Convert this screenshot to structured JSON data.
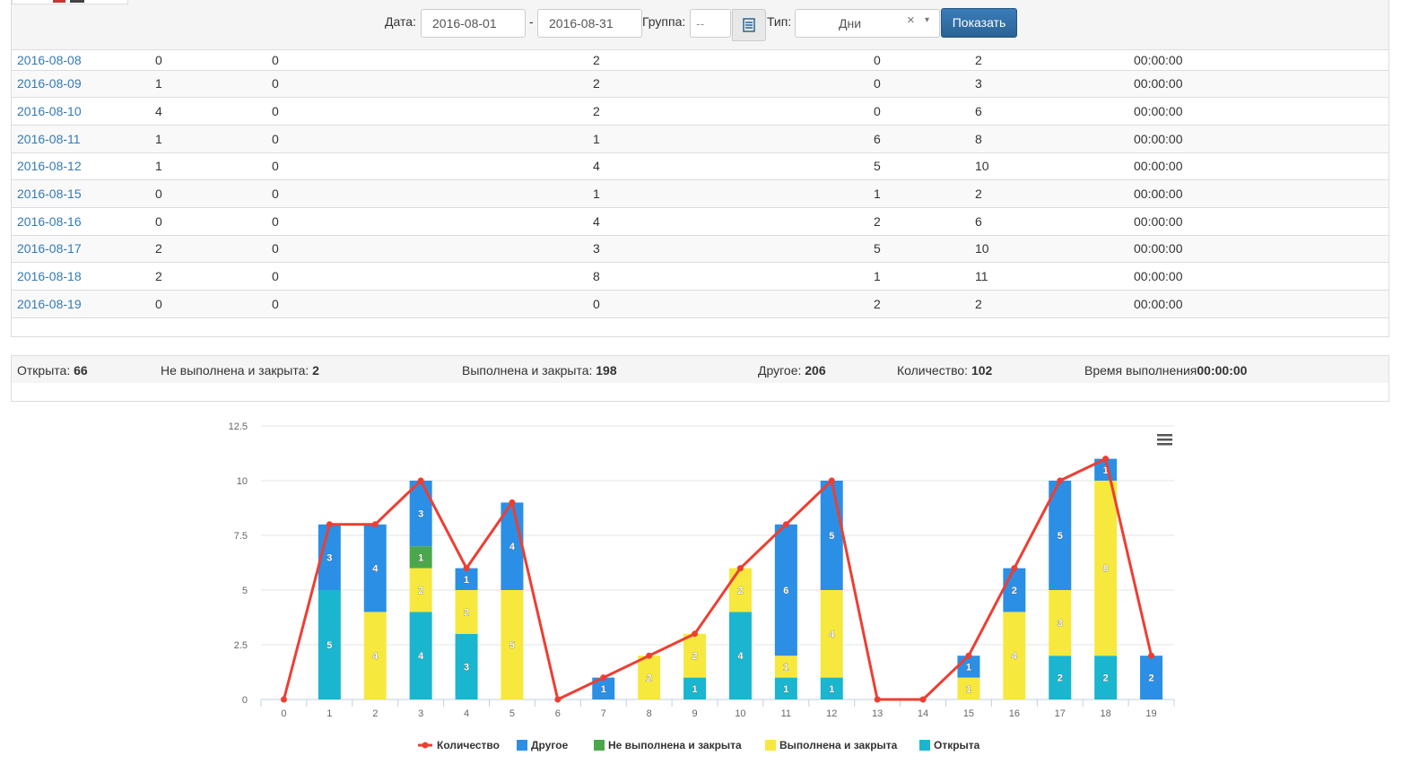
{
  "toolbar": {
    "date_label": "Дата:",
    "date_from": "2016-08-01",
    "date_separator": "-",
    "date_to": "2016-08-31",
    "group_label": "Группа:",
    "group_value": "--",
    "calendar_icon": "list-icon",
    "type_label": "Тип:",
    "type_value": "Дни",
    "type_clear": "×",
    "type_arrow": "▾",
    "show_button": "Показать"
  },
  "table": {
    "rows": [
      {
        "date": "2016-08-08",
        "c1": "0",
        "c2": "0",
        "c3": "2",
        "c4": "0",
        "c5": "2",
        "time": "00:00:00"
      },
      {
        "date": "2016-08-09",
        "c1": "1",
        "c2": "0",
        "c3": "2",
        "c4": "0",
        "c5": "3",
        "time": "00:00:00"
      },
      {
        "date": "2016-08-10",
        "c1": "4",
        "c2": "0",
        "c3": "2",
        "c4": "0",
        "c5": "6",
        "time": "00:00:00"
      },
      {
        "date": "2016-08-11",
        "c1": "1",
        "c2": "0",
        "c3": "1",
        "c4": "6",
        "c5": "8",
        "time": "00:00:00"
      },
      {
        "date": "2016-08-12",
        "c1": "1",
        "c2": "0",
        "c3": "4",
        "c4": "5",
        "c5": "10",
        "time": "00:00:00"
      },
      {
        "date": "2016-08-15",
        "c1": "0",
        "c2": "0",
        "c3": "1",
        "c4": "1",
        "c5": "2",
        "time": "00:00:00"
      },
      {
        "date": "2016-08-16",
        "c1": "0",
        "c2": "0",
        "c3": "4",
        "c4": "2",
        "c5": "6",
        "time": "00:00:00"
      },
      {
        "date": "2016-08-17",
        "c1": "2",
        "c2": "0",
        "c3": "3",
        "c4": "5",
        "c5": "10",
        "time": "00:00:00"
      },
      {
        "date": "2016-08-18",
        "c1": "2",
        "c2": "0",
        "c3": "8",
        "c4": "1",
        "c5": "11",
        "time": "00:00:00"
      },
      {
        "date": "2016-08-19",
        "c1": "0",
        "c2": "0",
        "c3": "0",
        "c4": "2",
        "c5": "2",
        "time": "00:00:00"
      }
    ]
  },
  "summary": {
    "open_label": "Открыта:",
    "open_value": "66",
    "notdone_label": "Не выполнена и закрыта:",
    "notdone_value": "2",
    "done_label": "Выполнена и закрыта:",
    "done_value": "198",
    "other_label": "Другое:",
    "other_value": "206",
    "count_label": "Количество:",
    "count_value": "102",
    "time_label": "Время выполнения",
    "time_value": "00:00:00"
  },
  "chart_menu_icon": "hamburger-menu-icon",
  "chart_data": {
    "type": "bar",
    "stacked": true,
    "categories": [
      "0",
      "1",
      "2",
      "3",
      "4",
      "5",
      "6",
      "7",
      "8",
      "9",
      "10",
      "11",
      "12",
      "13",
      "14",
      "15",
      "16",
      "17",
      "18",
      "19"
    ],
    "ylim": [
      0,
      12.5
    ],
    "yticks": [
      "0",
      "2.5",
      "5",
      "7.5",
      "10",
      "12.5"
    ],
    "grid": true,
    "legend_position": "bottom-center",
    "series": [
      {
        "name": "Открыта",
        "color": "#1ab6cf",
        "values": [
          0,
          5,
          0,
          4,
          3,
          0,
          0,
          0,
          0,
          1,
          4,
          1,
          1,
          0,
          0,
          0,
          0,
          2,
          2,
          0
        ]
      },
      {
        "name": "Выполнена и закрыта",
        "color": "#f7e83d",
        "values": [
          0,
          0,
          4,
          2,
          2,
          5,
          0,
          0,
          2,
          2,
          2,
          1,
          4,
          0,
          0,
          1,
          4,
          3,
          8,
          0
        ]
      },
      {
        "name": "Не выполнена и закрыта",
        "color": "#4aa84a",
        "values": [
          0,
          0,
          0,
          1,
          0,
          0,
          0,
          0,
          0,
          0,
          0,
          0,
          0,
          0,
          0,
          0,
          0,
          0,
          0,
          0
        ]
      },
      {
        "name": "Другое",
        "color": "#2b8fe6",
        "values": [
          0,
          3,
          4,
          3,
          1,
          4,
          0,
          1,
          0,
          0,
          0,
          6,
          5,
          0,
          0,
          1,
          2,
          5,
          1,
          2
        ]
      },
      {
        "name": "Количество",
        "color": "#ee3e32",
        "type": "line",
        "values": [
          0,
          8,
          8,
          10,
          6,
          9,
          0,
          1,
          2,
          3,
          6,
          8,
          10,
          0,
          0,
          2,
          6,
          10,
          11,
          2
        ]
      }
    ],
    "legend_order": [
      "Количество",
      "Другое",
      "Не выполнена и закрыта",
      "Выполнена и закрыта",
      "Открыта"
    ]
  }
}
